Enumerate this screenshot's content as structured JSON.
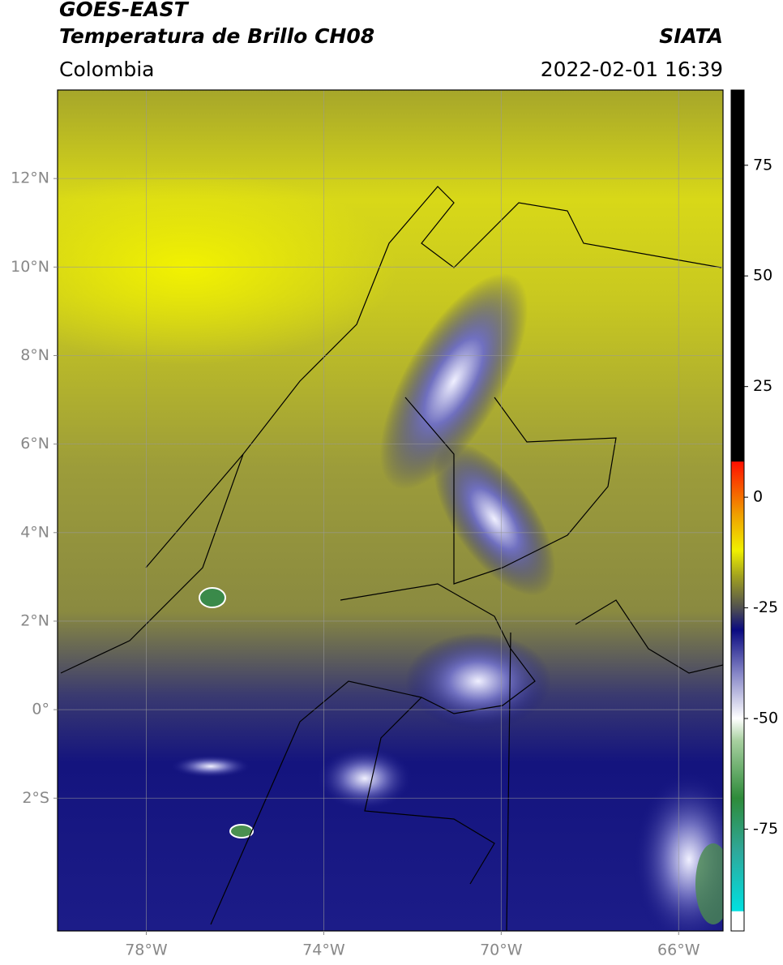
{
  "header": {
    "title": "GOES-EAST",
    "subtitle": "Temperatura de Brillo CH08",
    "source": "SIATA",
    "region": "Colombia",
    "datetime": "2022-02-01 16:39"
  },
  "map": {
    "xlim": [
      -80,
      -65
    ],
    "ylim": [
      -5,
      14
    ],
    "grid": true,
    "xticks": [
      {
        "value": -78,
        "label": "78°W"
      },
      {
        "value": -74,
        "label": "74°W"
      },
      {
        "value": -70,
        "label": "70°W"
      },
      {
        "value": -66,
        "label": "66°W"
      }
    ],
    "yticks": [
      {
        "value": 12,
        "label": "12°N"
      },
      {
        "value": 10,
        "label": "10°N"
      },
      {
        "value": 8,
        "label": "8°N"
      },
      {
        "value": 6,
        "label": "6°N"
      },
      {
        "value": 4,
        "label": "4°N"
      },
      {
        "value": 2,
        "label": "2°N"
      },
      {
        "value": 0,
        "label": "0°"
      },
      {
        "value": -2,
        "label": "2°S"
      }
    ]
  },
  "colorbar": {
    "lim": [
      -98,
      92
    ],
    "ticks": [
      75,
      50,
      25,
      0,
      -25,
      -50,
      -75
    ],
    "colormap": [
      [
        -98,
        "#ffffff"
      ],
      [
        -93.6,
        "#ffffff"
      ],
      [
        -93.5,
        "#00e0e0"
      ],
      [
        -80,
        "#2fa89a"
      ],
      [
        -68,
        "#2e8b3a"
      ],
      [
        -55,
        "#a8d0a0"
      ],
      [
        -50,
        "#ffffff"
      ],
      [
        -40,
        "#8888c8"
      ],
      [
        -30,
        "#0a0a80"
      ],
      [
        -25,
        "#505050"
      ],
      [
        -18,
        "#a0a020"
      ],
      [
        -12,
        "#f0f000"
      ],
      [
        -4,
        "#f0a000"
      ],
      [
        8,
        "#ff1000"
      ],
      [
        8.1,
        "#000000"
      ],
      [
        92,
        "#000000"
      ]
    ]
  }
}
